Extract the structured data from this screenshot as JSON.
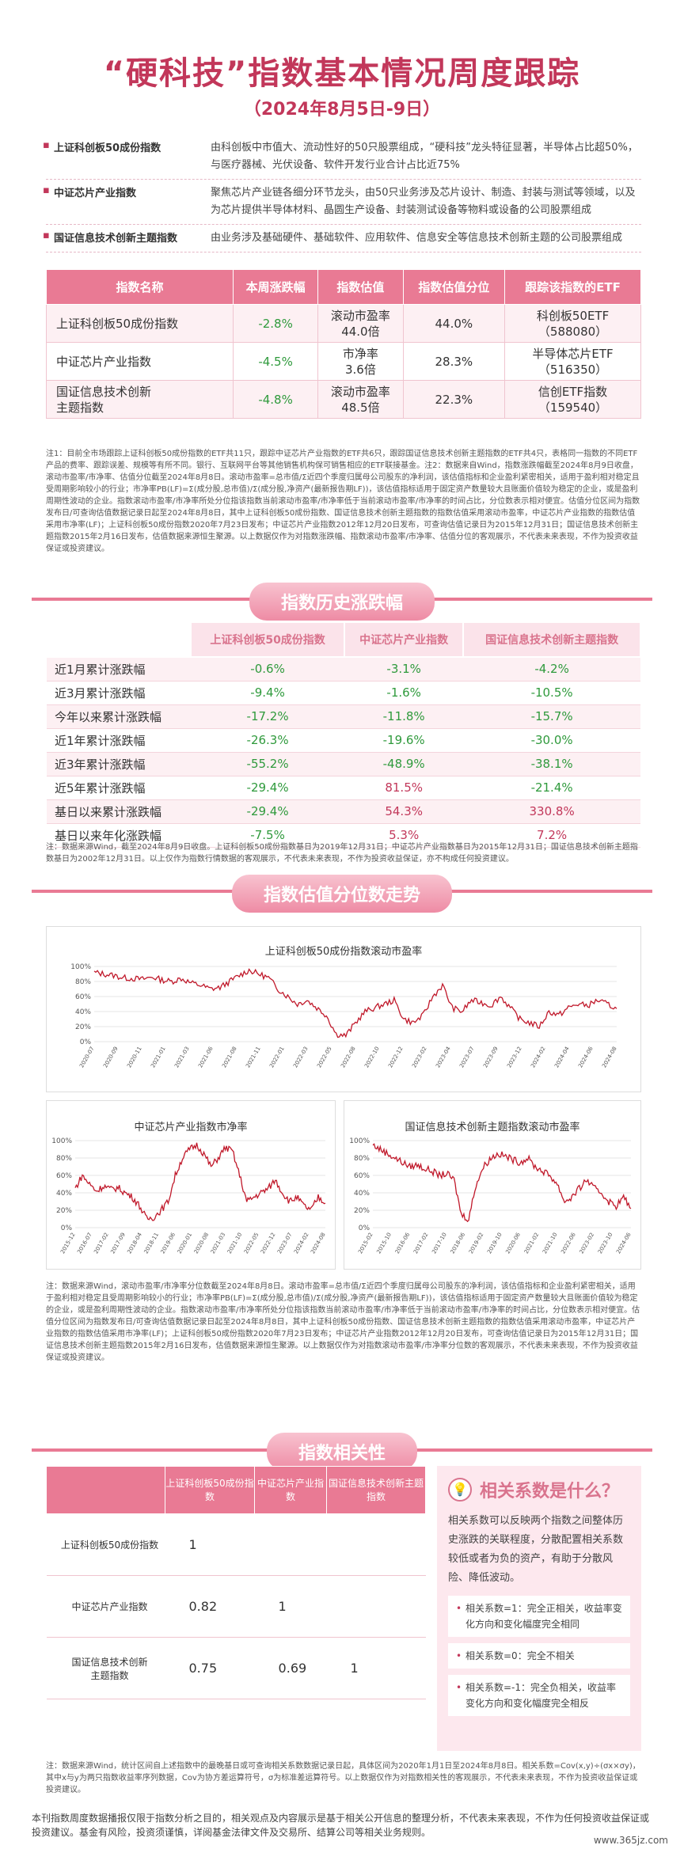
{
  "header": {
    "title": "“硬科技”指数基本情况周度跟踪",
    "subtitle": "（2024年8月5日-9日）"
  },
  "intro": [
    {
      "name": "上证科创板50成份指数",
      "desc": "由科创板中市值大、流动性好的50只股票组成，“硬科技”龙头特征显著，半导体占比超50%，与医疗器械、光伏设备、软件开发行业合计占比近75%"
    },
    {
      "name": "中证芯片产业指数",
      "desc": "聚焦芯片产业链各细分环节龙头，由50只业务涉及芯片设计、制造、封装与测试等领域，以及为芯片提供半导体材料、晶圆生产设备、封装测试设备等物料或设备的公司股票组成"
    },
    {
      "name": "国证信息技术创新主题指数",
      "desc": "由业务涉及基础硬件、基础软件、应用软件、信息安全等信息技术创新主题的公司股票组成"
    }
  ],
  "table1": {
    "headers": [
      "指数名称",
      "本周涨跌幅",
      "指数估值",
      "指数估值分位",
      "跟踪该指数的ETF"
    ],
    "rows": [
      {
        "name": "上证科创板50成份指数",
        "change": "-2.8%",
        "valuation": "滚动市盈率\n44.0倍",
        "percentile": "44.0%",
        "etf": "科创板50ETF\n（588080）"
      },
      {
        "name": "中证芯片产业指数",
        "change": "-4.5%",
        "valuation": "市净率\n3.6倍",
        "percentile": "28.3%",
        "etf": "半导体芯片ETF\n（516350）"
      },
      {
        "name": "国证信息技术创新\n主题指数",
        "change": "-4.8%",
        "valuation": "滚动市盈率\n48.5倍",
        "percentile": "22.3%",
        "etf": "信创ETF指数\n（159540）"
      }
    ]
  },
  "note1": "注1：目前全市场跟踪上证科创板50成份指数的ETF共11只，跟踪中证芯片产业指数的ETF共6只，跟踪国证信息技术创新主题指数的ETF共4只，表格同一指数的不同ETF产品的费率、跟踪误差、规模等有所不同。银行、互联网平台等其他销售机构保可销售相应的ETF联接基金。注2：数据来自Wind，指数涨跌幅截至2024年8月9日收盘，滚动市盈率/市净率、估值分位截至2024年8月8日。滚动市盈率=总市值/Σ近四个季度归属母公司股东的净利润，该估值指标和企业盈利紧密相关，适用于盈利相对稳定且受周期影响较小的行业；市净率PB(LF)=Σ(成分股,总市值)/Σ(成分股,净资产(最新报告期LF))，该估值指标适用于固定资产数量较大且账面价值较为稳定的企业，或是盈利周期性波动的企业。指数滚动市盈率/市净率所处分位指该指数当前滚动市盈率/市净率低于当前滚动市盈率/市净率的时间占比，分位数表示相对便宜。估值分位区间为指数发布日/可查询估值数据记录日起至2024年8月8日，其中上证科创板50成份指数、国证信息技术创新主题指数的指数估值采用滚动市盈率，中证芯片产业指数的指数估值采用市净率(LF)；上证科创板50成份指数2020年7月23日发布；中证芯片产业指数2012年12月20日发布，可查询估值记录日为2015年12月31日；国证信息技术创新主题指数2015年2月16日发布，估值数据来源恒生聚源。以上数据仅作为对指数涨跌幅、指数滚动市盈率/市净率、估值分位的客观展示，不代表未来表现，不作为投资收益保证或投资建议。",
  "section2": {
    "title": "指数历史涨跌幅",
    "headers": [
      "上证科创板50成份指数",
      "中证芯片产业指数",
      "国证信息技术创新主题指数"
    ],
    "rows": [
      {
        "label": "近1月累计涨跌幅",
        "v": [
          "-0.6%",
          "-3.1%",
          "-4.2%"
        ]
      },
      {
        "label": "近3月累计涨跌幅",
        "v": [
          "-9.4%",
          "-1.6%",
          "-10.5%"
        ]
      },
      {
        "label": "今年以来累计涨跌幅",
        "v": [
          "-17.2%",
          "-11.8%",
          "-15.7%"
        ]
      },
      {
        "label": "近1年累计涨跌幅",
        "v": [
          "-26.3%",
          "-19.6%",
          "-30.0%"
        ]
      },
      {
        "label": "近3年累计涨跌幅",
        "v": [
          "-55.2%",
          "-48.9%",
          "-38.1%"
        ]
      },
      {
        "label": "近5年累计涨跌幅",
        "v": [
          "-29.4%",
          "81.5%",
          "-21.4%"
        ]
      },
      {
        "label": "基日以来累计涨跌幅",
        "v": [
          "-29.4%",
          "54.3%",
          "330.8%"
        ]
      },
      {
        "label": "基日以来年化涨跌幅",
        "v": [
          "-7.5%",
          "5.3%",
          "7.2%"
        ]
      }
    ],
    "note": "注：数据来源Wind，截至2024年8月9日收盘。上证科创板50成份指数基日为2019年12月31日；中证芯片产业指数基日为2015年12月31日；国证信息技术创新主题指数基日为2002年12月31日。以上仅作为指数行情数据的客观展示，不代表未来表现，不作为投资收益保证，亦不构成任何投资建议。"
  },
  "section3": {
    "title": "指数估值分位数走势",
    "note": "注：数据来源Wind，滚动市盈率/市净率分位数截至2024年8月8日。滚动市盈率=总市值/Σ近四个季度归属母公司股东的净利润，该估值指标和企业盈利紧密相关，适用于盈利相对稳定且受周期影响较小的行业；市净率PB(LF)=Σ(成分股,总市值)/Σ(成分股,净资产(最新报告期LF))，该估值指标适用于固定资产数量较大且账面价值较为稳定的企业，或是盈利周期性波动的企业。指数滚动市盈率/市净率所处分位指该指数当前滚动市盈率/市净率低于当前滚动市盈率/市净率的时间占比，分位数表示相对便宜。估值分位区间为指数发布日/可查询估值数据记录日起至2024年8月8日，其中上证科创板50成份指数、国证信息技术创新主题指数的指数估值采用滚动市盈率，中证芯片产业指数的指数估值采用市净率(LF)；上证科创板50成份指数2020年7月23日发布；中证芯片产业指数2012年12月20日发布，可查询估值记录日为2015年12月31日；国证信息技术创新主题指数2015年2月16日发布，估值数据来源恒生聚源。以上数据仅作为对指数滚动市盈率/市净率分位数的客观展示，不代表未来表现，不作为投资收益保证或投资建议。"
  },
  "chart_data": [
    {
      "type": "line",
      "title": "上证科创板50成份指数滚动市盈率",
      "yticks": [
        "0%",
        "20%",
        "40%",
        "60%",
        "80%",
        "100%"
      ],
      "ylim": [
        0,
        100
      ],
      "xticks": [
        "2020-07",
        "2020-09",
        "2020-11",
        "2021-01",
        "2021-03",
        "2021-06",
        "2021-08",
        "2021-11",
        "2022-01",
        "2022-03",
        "2022-05",
        "2022-08",
        "2022-10",
        "2022-12",
        "2023-02",
        "2023-04",
        "2023-07",
        "2023-09",
        "2023-12",
        "2024-02",
        "2024-04",
        "2024-06",
        "2024-08"
      ],
      "values": [
        92,
        90,
        88,
        85,
        84,
        83,
        86,
        82,
        80,
        84,
        78,
        75,
        70,
        72,
        80,
        88,
        95,
        90,
        85,
        70,
        60,
        50,
        55,
        45,
        35,
        10,
        8,
        25,
        40,
        45,
        50,
        55,
        30,
        25,
        35,
        60,
        75,
        45,
        40,
        55,
        52,
        48,
        60,
        45,
        30,
        25,
        20,
        40,
        35,
        45,
        50,
        48,
        55,
        50,
        44
      ]
    },
    {
      "type": "line",
      "title": "中证芯片产业指数市净率",
      "yticks": [
        "0%",
        "20%",
        "40%",
        "60%",
        "80%",
        "100%"
      ],
      "ylim": [
        0,
        100
      ],
      "xticks": [
        "2015-12",
        "2016-07",
        "2017-02",
        "2017-09",
        "2018-04",
        "2018-11",
        "2019-06",
        "2020-01",
        "2020-08",
        "2021-03",
        "2021-10",
        "2022-05",
        "2022-12",
        "2023-07",
        "2024-02",
        "2024-08"
      ],
      "values": [
        45,
        60,
        50,
        42,
        48,
        44,
        46,
        40,
        35,
        25,
        10,
        12,
        20,
        30,
        60,
        80,
        90,
        95,
        85,
        70,
        80,
        92,
        88,
        60,
        30,
        35,
        40,
        45,
        55,
        40,
        30,
        35,
        25,
        20,
        35,
        28
      ]
    },
    {
      "type": "line",
      "title": "国证信息技术创新主题指数滚动市盈率",
      "yticks": [
        "0%",
        "20%",
        "40%",
        "60%",
        "80%",
        "100%"
      ],
      "ylim": [
        0,
        100
      ],
      "xticks": [
        "2015-02",
        "2015-10",
        "2016-06",
        "2017-02",
        "2017-10",
        "2018-06",
        "2019-02",
        "2019-10",
        "2020-06",
        "2021-02",
        "2021-10",
        "2022-06",
        "2023-02",
        "2023-10",
        "2024-06"
      ],
      "values": [
        95,
        90,
        85,
        80,
        75,
        70,
        72,
        68,
        65,
        60,
        62,
        55,
        15,
        10,
        50,
        70,
        80,
        85,
        82,
        78,
        75,
        80,
        70,
        65,
        60,
        50,
        30,
        35,
        45,
        55,
        45,
        40,
        30,
        25,
        35,
        22
      ]
    }
  ],
  "section4": {
    "title": "指数相关性",
    "headers": [
      "上证科创板50成份指数",
      "中证芯片产业指数",
      "国证信息技术创新主题指数"
    ],
    "rows": [
      {
        "label": "上证科创板50成份指数",
        "v": [
          "1",
          "",
          ""
        ]
      },
      {
        "label": "中证芯片产业指数",
        "v": [
          "0.82",
          "1",
          ""
        ]
      },
      {
        "label": "国证信息技术创新\n主题指数",
        "v": [
          "0.75",
          "0.69",
          "1"
        ]
      }
    ],
    "side_title": "相关系数是什么？",
    "side_body": "相关系数可以反映两个指数之间整体历史涨跌的关联程度，分散配置相关系数较低或者为负的资产，有助于分散风险、降低波动。",
    "side_items": [
      "相关系数=1：完全正相关，收益率变化方向和变化幅度完全相同",
      "相关系数=0：完全不相关",
      "相关系数=-1：完全负相关，收益率变化方向和变化幅度完全相反"
    ],
    "note": "注：数据来源Wind，统计区间自上述指数中的最晚基日或可查询相关系数数据记录日起，具体区间为2020年1月1日至2024年8月8日。相关系数=Cov(x,y)÷(σx×σy)，其中x与y为两只指数收益率序列数据，Cov为协方差运算符号，σ为标准差运算符号。以上数据仅作为对指数相关性的客观展示，不代表未来表现，不作为投资收益保证或投资建议。"
  },
  "disclaimer": "本刊指数周度数据播报仅限于指数分析之目的，相关观点及内容展示是基于相关公开信息的整理分析，不代表未来表现，不作为任何投资收益保证或投资建议。基金有风险，投资须谨慎，详阅基金法律文件及交易所、结算公司等相关业务规则。",
  "watermark": "www.365jz.com"
}
